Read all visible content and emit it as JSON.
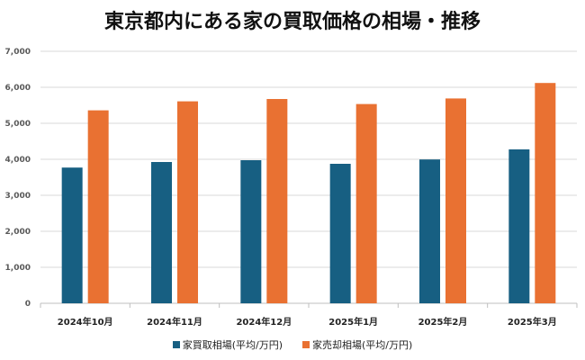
{
  "chart_data": {
    "type": "bar",
    "title": "東京都内にある家の買取価格の相場・推移",
    "categories": [
      "2024年10月",
      "2024年11月",
      "2024年12月",
      "2025年1月",
      "2025年2月",
      "2025年3月"
    ],
    "series": [
      {
        "name": "家買取相場(平均/万円)",
        "color": "#175f82",
        "values": [
          3770,
          3925,
          3975,
          3875,
          3995,
          4275
        ]
      },
      {
        "name": "家売却相場(平均/万円)",
        "color": "#e97132",
        "values": [
          5360,
          5610,
          5675,
          5535,
          5690,
          6120
        ]
      }
    ],
    "yticks": [
      "0",
      "1,000",
      "2,000",
      "3,000",
      "4,000",
      "5,000",
      "6,000",
      "7,000"
    ],
    "ylim": [
      0,
      7000
    ],
    "grid": true,
    "legend": "bottom"
  }
}
